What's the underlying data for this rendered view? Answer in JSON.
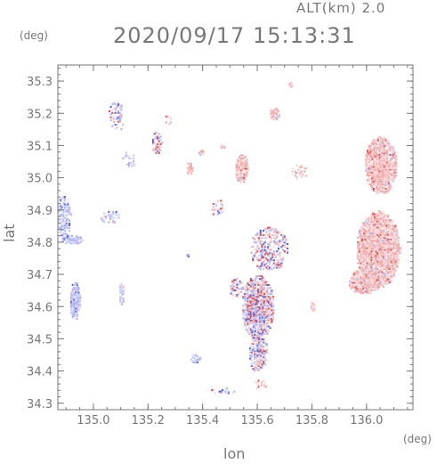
{
  "header": {
    "alt_label": "ALT(km)  2.0",
    "timestamp": "2020/09/17 15:13:31"
  },
  "chart_data": {
    "type": "heatmap",
    "title": "2020/09/17 15:13:31",
    "subtitle": "ALT(km)  2.0",
    "xlabel": "lon",
    "ylabel": "lat",
    "x_unit": "(deg)",
    "y_unit": "(deg)",
    "xlim": [
      134.87,
      136.17
    ],
    "ylim": [
      34.28,
      35.35
    ],
    "x_ticks": [
      135.0,
      135.2,
      135.4,
      135.6,
      135.8,
      136.0
    ],
    "x_tick_labels": [
      "135.0",
      "135.2",
      "135.4",
      "135.6",
      "135.8",
      "136.0"
    ],
    "y_ticks": [
      34.3,
      34.4,
      34.5,
      34.6,
      34.7,
      34.8,
      34.9,
      35.0,
      35.1,
      35.2,
      35.3
    ],
    "y_tick_labels": [
      "34.3",
      "34.4",
      "34.5",
      "34.6",
      "34.7",
      "34.8",
      "34.9",
      "35.0",
      "35.1",
      "35.2",
      "35.3"
    ],
    "colors": {
      "positive": "#f2a8a8",
      "negative": "#b8bdf5",
      "strong_positive": "#e05050",
      "strong_negative": "#5a64e0"
    },
    "echo_regions": [
      {
        "lon": 135.6,
        "lat": 34.6,
        "rlon": 0.06,
        "rlat": 0.1,
        "sign": 0,
        "density": 0.85
      },
      {
        "lon": 135.6,
        "lat": 34.46,
        "rlon": 0.035,
        "rlat": 0.06,
        "sign": 0,
        "density": 0.7
      },
      {
        "lon": 135.64,
        "lat": 34.78,
        "rlon": 0.07,
        "rlat": 0.07,
        "sign": 0,
        "density": 0.45
      },
      {
        "lon": 135.52,
        "lat": 34.66,
        "rlon": 0.025,
        "rlat": 0.03,
        "sign": 0,
        "density": 0.6
      },
      {
        "lon": 136.04,
        "lat": 34.78,
        "rlon": 0.08,
        "rlat": 0.12,
        "sign": 1,
        "density": 0.95
      },
      {
        "lon": 136.05,
        "lat": 35.04,
        "rlon": 0.06,
        "rlat": 0.09,
        "sign": 1,
        "density": 0.95
      },
      {
        "lon": 135.99,
        "lat": 34.68,
        "rlon": 0.06,
        "rlat": 0.04,
        "sign": 1,
        "density": 0.9
      },
      {
        "lon": 134.89,
        "lat": 34.88,
        "rlon": 0.025,
        "rlat": 0.07,
        "sign": -1,
        "density": 0.7
      },
      {
        "lon": 134.92,
        "lat": 34.81,
        "rlon": 0.04,
        "rlat": 0.015,
        "sign": -1,
        "density": 0.85
      },
      {
        "lon": 134.93,
        "lat": 34.62,
        "rlon": 0.02,
        "rlat": 0.06,
        "sign": -1,
        "density": 0.9
      },
      {
        "lon": 135.1,
        "lat": 34.64,
        "rlon": 0.01,
        "rlat": 0.035,
        "sign": -1,
        "density": 0.8
      },
      {
        "lon": 135.06,
        "lat": 34.88,
        "rlon": 0.04,
        "rlat": 0.02,
        "sign": -1,
        "density": 0.4
      },
      {
        "lon": 135.13,
        "lat": 35.06,
        "rlon": 0.03,
        "rlat": 0.025,
        "sign": -1,
        "density": 0.35
      },
      {
        "lon": 135.08,
        "lat": 35.19,
        "rlon": 0.03,
        "rlat": 0.05,
        "sign": 0,
        "density": 0.3
      },
      {
        "lon": 135.23,
        "lat": 35.11,
        "rlon": 0.02,
        "rlat": 0.035,
        "sign": 0,
        "density": 0.6
      },
      {
        "lon": 135.27,
        "lat": 35.18,
        "rlon": 0.012,
        "rlat": 0.015,
        "sign": 1,
        "density": 0.5
      },
      {
        "lon": 135.35,
        "lat": 35.03,
        "rlon": 0.012,
        "rlat": 0.02,
        "sign": 1,
        "density": 0.7
      },
      {
        "lon": 135.39,
        "lat": 35.08,
        "rlon": 0.012,
        "rlat": 0.01,
        "sign": 1,
        "density": 0.6
      },
      {
        "lon": 135.47,
        "lat": 35.1,
        "rlon": 0.01,
        "rlat": 0.008,
        "sign": 1,
        "density": 0.7
      },
      {
        "lon": 135.54,
        "lat": 35.03,
        "rlon": 0.025,
        "rlat": 0.045,
        "sign": 1,
        "density": 0.85
      },
      {
        "lon": 135.66,
        "lat": 35.2,
        "rlon": 0.02,
        "rlat": 0.02,
        "sign": 1,
        "density": 0.85
      },
      {
        "lon": 135.72,
        "lat": 35.29,
        "rlon": 0.01,
        "rlat": 0.01,
        "sign": 1,
        "density": 0.6
      },
      {
        "lon": 135.75,
        "lat": 35.02,
        "rlon": 0.03,
        "rlat": 0.025,
        "sign": 1,
        "density": 0.35
      },
      {
        "lon": 135.45,
        "lat": 34.91,
        "rlon": 0.025,
        "rlat": 0.025,
        "sign": 0,
        "density": 0.35
      },
      {
        "lon": 135.8,
        "lat": 34.6,
        "rlon": 0.01,
        "rlat": 0.02,
        "sign": 1,
        "density": 0.6
      },
      {
        "lon": 135.37,
        "lat": 34.44,
        "rlon": 0.02,
        "rlat": 0.015,
        "sign": -1,
        "density": 0.6
      },
      {
        "lon": 135.47,
        "lat": 34.34,
        "rlon": 0.05,
        "rlat": 0.01,
        "sign": 0,
        "density": 0.4
      },
      {
        "lon": 135.61,
        "lat": 34.36,
        "rlon": 0.025,
        "rlat": 0.015,
        "sign": 1,
        "density": 0.45
      },
      {
        "lon": 135.34,
        "lat": 34.76,
        "rlon": 0.006,
        "rlat": 0.006,
        "sign": -1,
        "density": 0.9
      }
    ]
  }
}
